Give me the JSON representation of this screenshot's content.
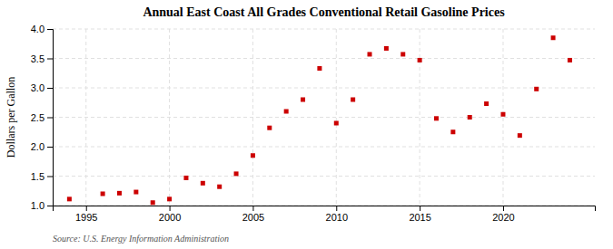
{
  "chart_data": {
    "type": "scatter",
    "title": "Annual East Coast All Grades Conventional Retail Gasoline Prices",
    "ylabel": "Dollars per Gallon",
    "source": "Source: U.S. Energy Information Administration",
    "x": [
      1994,
      1996,
      1997,
      1998,
      1999,
      2000,
      2001,
      2002,
      2003,
      2004,
      2005,
      2006,
      2007,
      2008,
      2009,
      2010,
      2011,
      2012,
      2013,
      2014,
      2015,
      2016,
      2017,
      2018,
      2019,
      2020,
      2021,
      2022,
      2023,
      2024
    ],
    "values": [
      1.11,
      1.2,
      1.21,
      1.23,
      1.05,
      1.11,
      1.47,
      1.38,
      1.32,
      1.54,
      1.85,
      2.32,
      2.6,
      2.8,
      3.33,
      2.4,
      2.8,
      3.57,
      3.67,
      3.57,
      3.47,
      2.48,
      2.25,
      2.5,
      2.73,
      2.55,
      2.19,
      2.98,
      3.85,
      3.47
    ],
    "color": "#cc0000",
    "marker": "square",
    "xlim": [
      1993.0,
      2025.5
    ],
    "ylim": [
      1.0,
      4.0
    ],
    "xticks": [
      1995,
      2000,
      2005,
      2010,
      2015,
      2020
    ],
    "yticks": [
      {
        "value": 1.0,
        "label": "1.0"
      },
      {
        "value": 1.5,
        "label": "1.5"
      },
      {
        "value": 2.0,
        "label": "2.0"
      },
      {
        "value": 2.5,
        "label": "2.5"
      },
      {
        "value": 3.0,
        "label": "3.0"
      },
      {
        "value": 3.5,
        "label": "3.5"
      },
      {
        "value": 4.0,
        "label": "4.0"
      }
    ],
    "grid": true
  }
}
